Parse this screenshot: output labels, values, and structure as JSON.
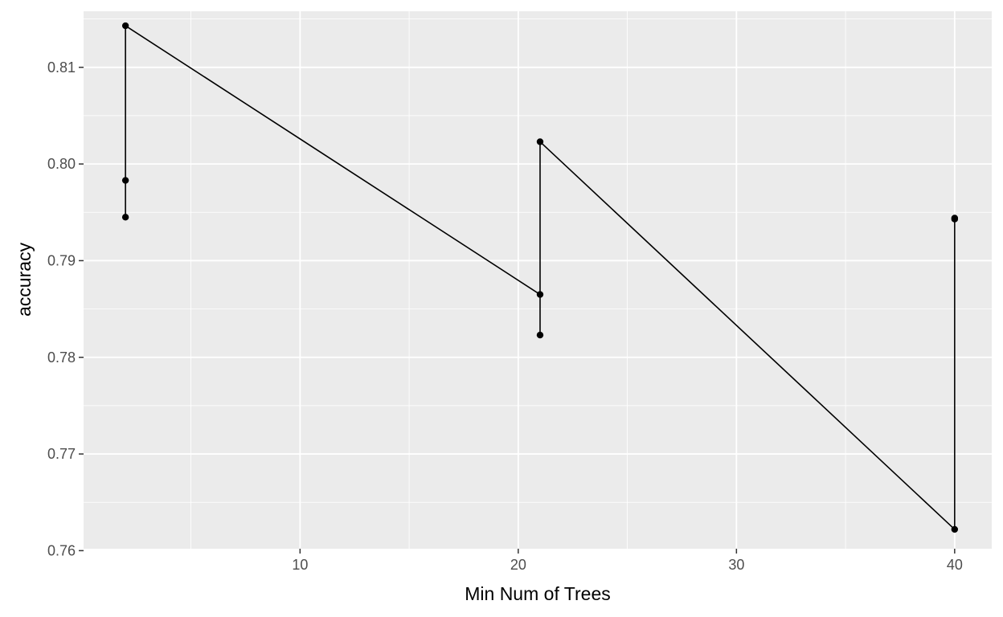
{
  "chart_data": {
    "type": "line",
    "title": "",
    "xlabel": "Min Num of Trees",
    "ylabel": "accuracy",
    "xlim": [
      0.08,
      41.7
    ],
    "ylim": [
      0.7602,
      0.8158
    ],
    "x_ticks": [
      10,
      20,
      30,
      40
    ],
    "x_tick_labels": [
      "10",
      "20",
      "30",
      "40"
    ],
    "y_ticks": [
      0.76,
      0.77,
      0.78,
      0.79,
      0.8,
      0.81
    ],
    "y_tick_labels": [
      "0.76",
      "0.77",
      "0.78",
      "0.79",
      "0.80",
      "0.81"
    ],
    "grid": true,
    "legend": "none",
    "series": [
      {
        "points": [
          {
            "x": 2,
            "y": 0.7945
          },
          {
            "x": 2,
            "y": 0.7983
          },
          {
            "x": 2,
            "y": 0.8143
          },
          {
            "x": 21,
            "y": 0.7865
          },
          {
            "x": 21,
            "y": 0.7823
          },
          {
            "x": 21,
            "y": 0.8023
          },
          {
            "x": 40,
            "y": 0.7622
          },
          {
            "x": 40,
            "y": 0.7943
          },
          {
            "x": 40,
            "y": 0.7944
          }
        ]
      }
    ],
    "colors": {
      "panel_background": "#ebebeb",
      "grid_major": "#ffffff",
      "line": "#000000",
      "point": "#000000"
    }
  }
}
